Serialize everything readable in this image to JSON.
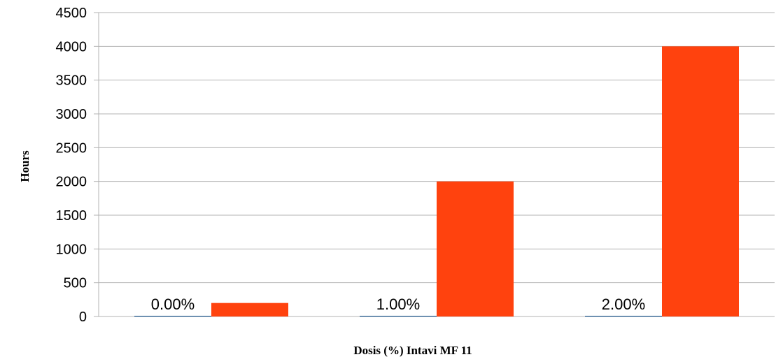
{
  "chart_data": {
    "type": "bar",
    "title": "",
    "xlabel": "Dosis (%) Intavi MF 11",
    "ylabel": "Hours",
    "ylim": [
      0,
      4500
    ],
    "ytick_step": 500,
    "grid": true,
    "legend": "none",
    "categories": [
      "0.00%",
      "1.00%",
      "2.00%"
    ],
    "series": [
      {
        "values": [
          0,
          0,
          0
        ],
        "color": "#004586"
      },
      {
        "values": [
          200,
          2000,
          4000
        ],
        "color": "#ff420e"
      }
    ]
  }
}
